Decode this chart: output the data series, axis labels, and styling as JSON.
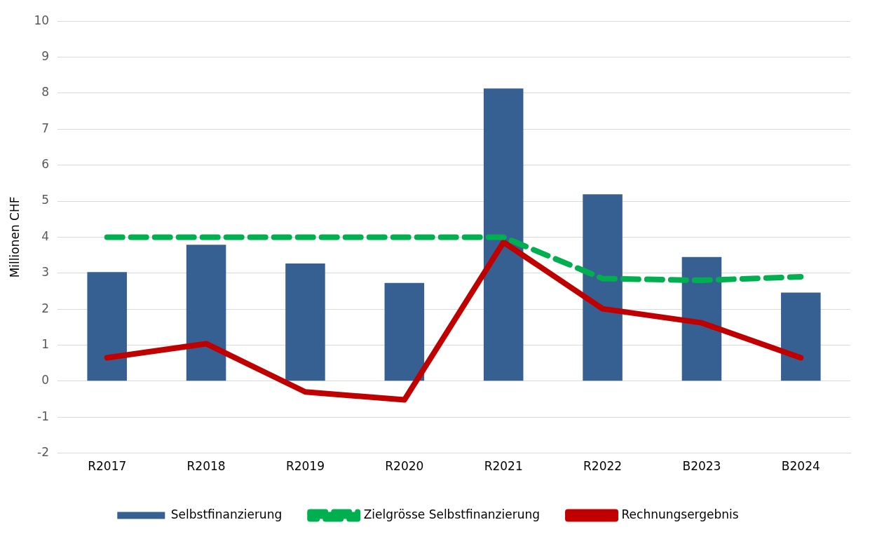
{
  "chart_data": {
    "type": "bar",
    "ylabel": "Millionen CHF",
    "categories": [
      "R2017",
      "R2018",
      "R2019",
      "R2020",
      "R2021",
      "R2022",
      "B2023",
      "B2024"
    ],
    "series": [
      {
        "name": "Selbstfinanzierung",
        "color": "#376092",
        "values": [
          3.03,
          3.79,
          3.27,
          2.73,
          8.13,
          5.19,
          3.45,
          2.46
        ]
      },
      {
        "name": "Zielgrösse Selbstfinanzierung",
        "type": "line",
        "line_style": "dashed",
        "color": "#00b050",
        "values": [
          4,
          4,
          4,
          4,
          4,
          2.85,
          2.8,
          2.9
        ]
      },
      {
        "name": "Rechnungsergebnis",
        "type": "line",
        "line_style": "solid",
        "color": "#c00000",
        "values": [
          0.65,
          1.04,
          -0.3,
          -0.52,
          3.86,
          2.01,
          1.62,
          0.65
        ]
      }
    ],
    "ylim": [
      -2,
      10
    ],
    "yticks": [
      -2,
      -1,
      0,
      1,
      2,
      3,
      4,
      5,
      6,
      7,
      8,
      9,
      10
    ],
    "grid": "y",
    "legend": "bottom",
    "marker": "none"
  }
}
